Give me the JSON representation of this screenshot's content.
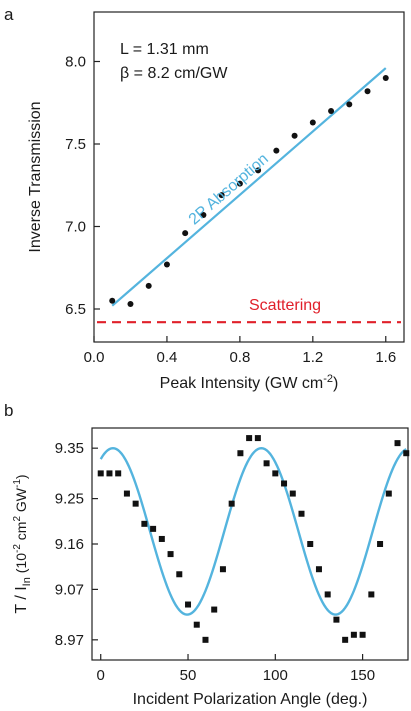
{
  "colors": {
    "fit": "#54B4DE",
    "scatter": "#E0202A",
    "points": "#111111",
    "axis": "#222222"
  },
  "chart_data": [
    {
      "panel": "a",
      "type": "scatter",
      "xlabel": "Peak Intensity (GW cm",
      "xlabel_sup": "-2",
      "xlabel_tail": ")",
      "ylabel": "Inverse Transmission",
      "xlim": [
        0,
        1.7
      ],
      "ylim": [
        6.3,
        8.3
      ],
      "xticks": [
        "0.0",
        "0.4",
        "0.8",
        "1.2",
        "1.6"
      ],
      "xtick_values": [
        0.0,
        0.4,
        0.8,
        1.2,
        1.6
      ],
      "yticks": [
        "6.5",
        "7.0",
        "7.5",
        "8.0"
      ],
      "ytick_values": [
        6.5,
        7.0,
        7.5,
        8.0
      ],
      "annotations": [
        "L = 1.31 mm",
        "β = 8.2 cm/GW"
      ],
      "series": [
        {
          "kind": "points",
          "x": [
            0.1,
            0.2,
            0.3,
            0.4,
            0.5,
            0.6,
            0.7,
            0.8,
            0.9,
            1.0,
            1.1,
            1.2,
            1.3,
            1.4,
            1.5,
            1.6
          ],
          "y": [
            6.55,
            6.53,
            6.64,
            6.77,
            6.96,
            7.07,
            7.19,
            7.26,
            7.34,
            7.46,
            7.55,
            7.63,
            7.7,
            7.74,
            7.82,
            7.9
          ]
        },
        {
          "kind": "fit",
          "name": "2P Absorption",
          "x": [
            0.1,
            1.6
          ],
          "y": [
            6.52,
            7.96
          ]
        },
        {
          "kind": "baseline",
          "name": "Scattering",
          "x": [
            0,
            1.7
          ],
          "y": [
            6.42,
            6.42
          ]
        }
      ]
    },
    {
      "panel": "b",
      "type": "scatter",
      "xlabel": "Incident Polarization Angle (deg.)",
      "ylabel_main": "T / I",
      "ylabel_sub": "In",
      "ylabel_unit_open": "(10",
      "ylabel_sup1": "-2",
      "ylabel_unit_mid": " cm",
      "ylabel_sup2": "2",
      "ylabel_unit_gw": " GW",
      "ylabel_sup3": "-1",
      "ylabel_unit_close": ")",
      "xlim": [
        -5,
        176
      ],
      "ylim": [
        8.93,
        9.39
      ],
      "xticks": [
        "0",
        "50",
        "100",
        "150"
      ],
      "xtick_values": [
        0,
        50,
        100,
        150
      ],
      "yticks": [
        "8.97",
        "9.07",
        "9.16",
        "9.25",
        "9.35"
      ],
      "ytick_values": [
        8.97,
        9.07,
        9.16,
        9.25,
        9.35
      ],
      "series": [
        {
          "kind": "points",
          "x": [
            0,
            5,
            10,
            15,
            20,
            25,
            30,
            35,
            40,
            45,
            50,
            55,
            60,
            65,
            70,
            75,
            80,
            85,
            90,
            95,
            100,
            105,
            110,
            115,
            120,
            125,
            130,
            135,
            140,
            145,
            150,
            155,
            160,
            165,
            170,
            175
          ],
          "y": [
            9.3,
            9.3,
            9.3,
            9.26,
            9.24,
            9.2,
            9.19,
            9.17,
            9.14,
            9.1,
            9.04,
            9.0,
            8.97,
            9.03,
            9.11,
            9.24,
            9.34,
            9.37,
            9.37,
            9.32,
            9.3,
            9.28,
            9.26,
            9.22,
            9.16,
            9.11,
            9.06,
            9.01,
            8.97,
            8.98,
            8.98,
            9.06,
            9.16,
            9.26,
            9.36,
            9.34
          ]
        },
        {
          "kind": "fit",
          "model": "cosine",
          "mean": 9.185,
          "amplitude": 0.165,
          "period": 85,
          "peak_x": 7
        }
      ]
    }
  ]
}
